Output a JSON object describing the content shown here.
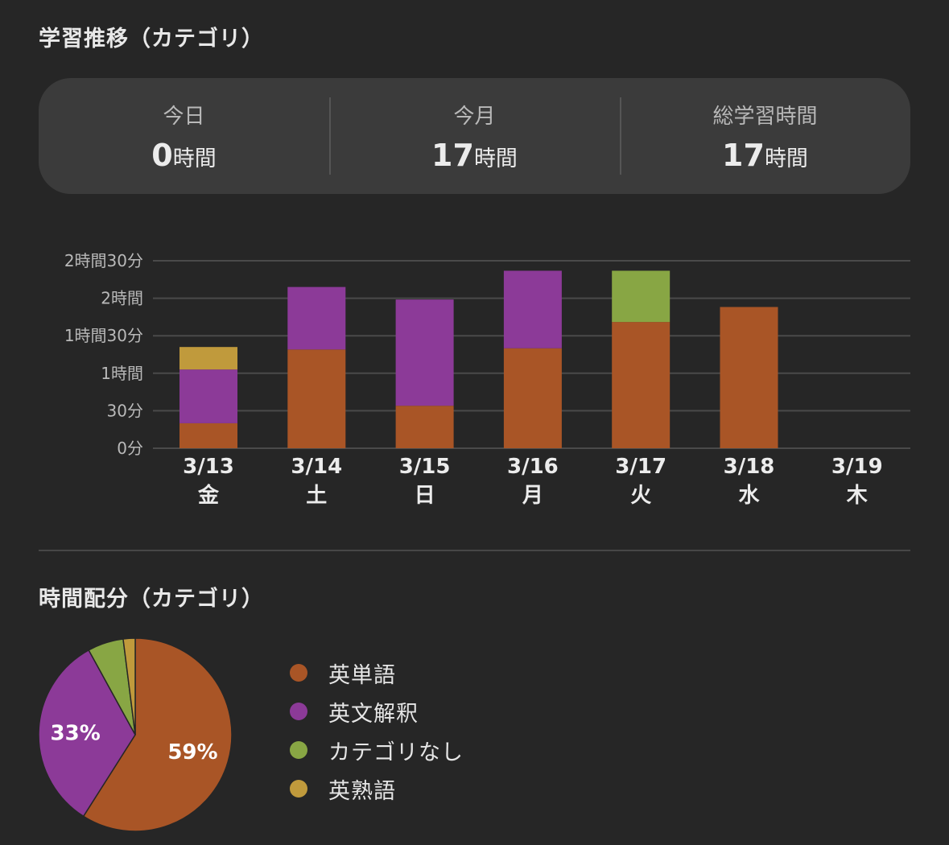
{
  "titles": {
    "trend": "学習推移（カテゴリ）",
    "distribution": "時間配分（カテゴリ）"
  },
  "summary": [
    {
      "label": "今日",
      "value": "0",
      "unit": "時間"
    },
    {
      "label": "今月",
      "value": "17",
      "unit": "時間"
    },
    {
      "label": "総学習時間",
      "value": "17",
      "unit": "時間"
    }
  ],
  "colors": {
    "background": "#262626",
    "英単語": "#a95526",
    "英文解釈": "#8c3a98",
    "カテゴリなし": "#88a644",
    "英熟語": "#c09a3c"
  },
  "chart_data": [
    {
      "type": "bar",
      "stacked": true,
      "categories": [
        "3/13",
        "3/14",
        "3/15",
        "3/16",
        "3/17",
        "3/18",
        "3/19"
      ],
      "weekdays": [
        "金",
        "土",
        "日",
        "月",
        "火",
        "水",
        "木"
      ],
      "unit": "minutes",
      "yticks": [
        {
          "value": 0,
          "label": "0分"
        },
        {
          "value": 30,
          "label": "30分"
        },
        {
          "value": 60,
          "label": "1時間"
        },
        {
          "value": 90,
          "label": "1時間30分"
        },
        {
          "value": 120,
          "label": "2時間"
        },
        {
          "value": 150,
          "label": "2時間30分"
        }
      ],
      "ylim": [
        0,
        150
      ],
      "grid": true,
      "series": [
        {
          "name": "英単語",
          "values": [
            20,
            79,
            34,
            80,
            101,
            113,
            0
          ]
        },
        {
          "name": "英文解釈",
          "values": [
            43,
            50,
            85,
            62,
            0,
            0,
            0
          ]
        },
        {
          "name": "カテゴリなし",
          "values": [
            0,
            0,
            0,
            0,
            41,
            0,
            0
          ]
        },
        {
          "name": "英熟語",
          "values": [
            18,
            0,
            0,
            0,
            0,
            0,
            0
          ]
        }
      ]
    },
    {
      "type": "pie",
      "slices": [
        {
          "name": "英単語",
          "value": 59,
          "label": "59%"
        },
        {
          "name": "英文解釈",
          "value": 33,
          "label": "33%"
        },
        {
          "name": "カテゴリなし",
          "value": 6,
          "label": ""
        },
        {
          "name": "英熟語",
          "value": 2,
          "label": ""
        }
      ],
      "legend_placement": "right"
    }
  ]
}
